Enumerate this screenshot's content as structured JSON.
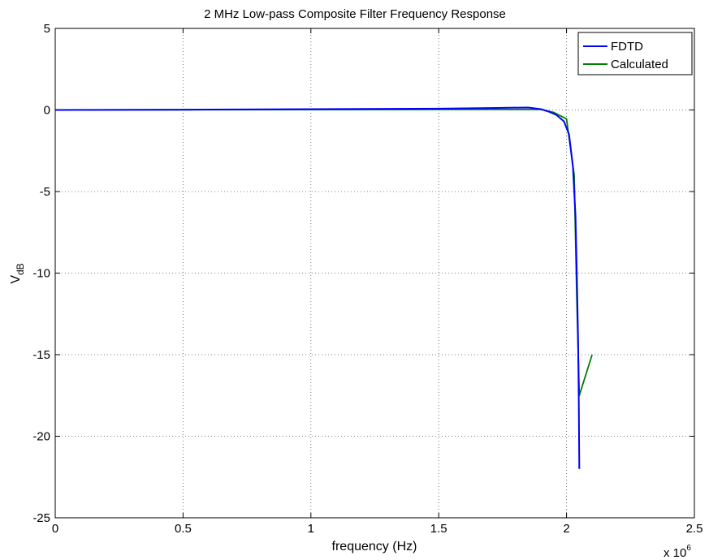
{
  "chart_data": {
    "type": "line",
    "title": "2 MHz Low-pass Composite Filter Frequency Response",
    "xlabel": "frequency (Hz)",
    "ylabel_main": "V",
    "ylabel_sub": "dB",
    "x_multiplier_base": "x 10",
    "x_multiplier_exp": "6",
    "xlim": [
      0,
      2.5
    ],
    "ylim": [
      -25,
      5
    ],
    "xticks": [
      0,
      0.5,
      1,
      1.5,
      2,
      2.5
    ],
    "xtick_labels": [
      "0",
      "0.5",
      "1",
      "1.5",
      "2",
      "2.5"
    ],
    "yticks": [
      5,
      0,
      -5,
      -10,
      -15,
      -20,
      -25
    ],
    "ytick_labels": [
      "5",
      "0",
      "-5",
      "-10",
      "-15",
      "-20",
      "-25"
    ],
    "grid": true,
    "legend_position": "top-right",
    "series": [
      {
        "name": "FDTD",
        "color": "#0000ff",
        "x": [
          0,
          0.5,
          1.0,
          1.5,
          1.7,
          1.85,
          1.9,
          1.93,
          1.96,
          1.99,
          2.01,
          2.025,
          2.035,
          2.04,
          2.045,
          2.048,
          2.05
        ],
        "y": [
          0,
          0.02,
          0.05,
          0.08,
          0.12,
          0.15,
          0.05,
          -0.1,
          -0.3,
          -0.7,
          -1.5,
          -3.5,
          -6.5,
          -10,
          -14,
          -18,
          -22
        ]
      },
      {
        "name": "Calculated",
        "color": "#008000",
        "x": [
          0,
          0.5,
          1.0,
          1.5,
          1.9,
          1.95,
          2.0,
          2.03,
          2.04,
          2.05,
          2.1
        ],
        "y": [
          0,
          0.01,
          0.02,
          0.03,
          0.03,
          -0.15,
          -0.55,
          -4.0,
          -11.5,
          -17.5,
          -15.0
        ]
      }
    ]
  }
}
